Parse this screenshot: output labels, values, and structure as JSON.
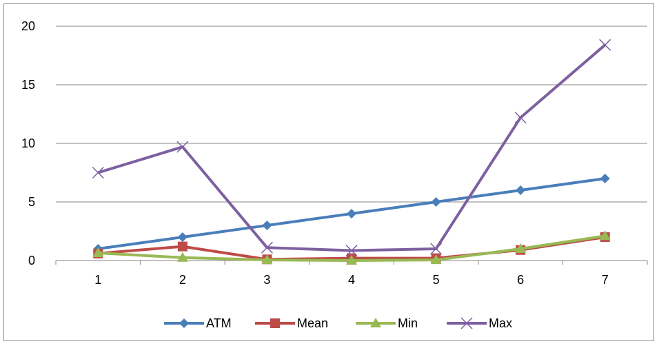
{
  "chart_data": {
    "type": "line",
    "title": "",
    "xlabel": "",
    "ylabel": "",
    "categories": [
      "1",
      "2",
      "3",
      "4",
      "5",
      "6",
      "7"
    ],
    "ylim": [
      0,
      20
    ],
    "yticks": [
      "0",
      "5",
      "10",
      "15",
      "20"
    ],
    "grid": true,
    "legend_position": "bottom",
    "series": [
      {
        "name": "ATM",
        "color": "#4a7ebb",
        "marker": "diamond",
        "values": [
          1,
          2,
          3,
          4,
          5,
          6,
          7
        ]
      },
      {
        "name": "Mean",
        "color": "#be4b48",
        "marker": "square",
        "values": [
          0.6,
          1.2,
          0.1,
          0.2,
          0.2,
          0.9,
          2.0
        ]
      },
      {
        "name": "Min",
        "color": "#98b954",
        "marker": "triangle",
        "values": [
          0.65,
          0.25,
          0.05,
          0.0,
          0.05,
          1.0,
          2.1
        ]
      },
      {
        "name": "Max",
        "color": "#7d60a0",
        "marker": "x",
        "values": [
          7.5,
          9.7,
          1.1,
          0.85,
          1.0,
          12.2,
          18.4
        ]
      }
    ]
  }
}
